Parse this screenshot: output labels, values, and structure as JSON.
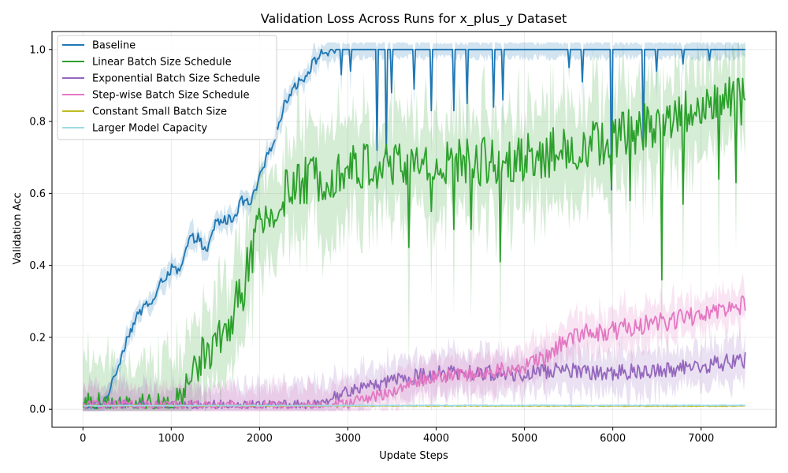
{
  "chart_data": {
    "type": "line",
    "title": "Validation Loss Across Runs for x_plus_y Dataset",
    "xlabel": "Update Steps",
    "ylabel": "Validation Acc",
    "xlim": [
      -350,
      7850
    ],
    "ylim": [
      -0.05,
      1.05
    ],
    "xticks": [
      0,
      1000,
      2000,
      3000,
      4000,
      5000,
      6000,
      7000
    ],
    "yticks": [
      0.0,
      0.2,
      0.4,
      0.6,
      0.8,
      1.0
    ],
    "grid": true,
    "legend_position": "upper-left",
    "x_range": [
      0,
      7500
    ],
    "series": [
      {
        "name": "Baseline",
        "color": "#1f77b4",
        "band": true,
        "noise": 0.01,
        "points": [
          [
            0,
            0.01
          ],
          [
            150,
            0.004
          ],
          [
            250,
            0.02
          ],
          [
            400,
            0.12
          ],
          [
            500,
            0.2
          ],
          [
            600,
            0.25
          ],
          [
            700,
            0.29
          ],
          [
            800,
            0.3
          ],
          [
            900,
            0.36
          ],
          [
            1000,
            0.39
          ],
          [
            1100,
            0.38
          ],
          [
            1200,
            0.47
          ],
          [
            1300,
            0.48
          ],
          [
            1400,
            0.43
          ],
          [
            1500,
            0.52
          ],
          [
            1700,
            0.53
          ],
          [
            1800,
            0.58
          ],
          [
            1900,
            0.57
          ],
          [
            2000,
            0.64
          ],
          [
            2100,
            0.71
          ],
          [
            2200,
            0.78
          ],
          [
            2300,
            0.86
          ],
          [
            2400,
            0.9
          ],
          [
            2500,
            0.92
          ],
          [
            2600,
            0.96
          ],
          [
            2700,
            0.99
          ],
          [
            2900,
            1.0
          ],
          [
            7500,
            1.0
          ]
        ],
        "dips": [
          [
            2930,
            0.93
          ],
          [
            3030,
            0.94
          ],
          [
            3330,
            0.72
          ],
          [
            3430,
            0.71
          ],
          [
            3500,
            0.88
          ],
          [
            3750,
            0.89
          ],
          [
            3950,
            0.83
          ],
          [
            4200,
            0.83
          ],
          [
            4350,
            0.85
          ],
          [
            4650,
            0.84
          ],
          [
            4750,
            0.86
          ],
          [
            5500,
            0.95
          ],
          [
            5650,
            0.91
          ],
          [
            5990,
            0.61
          ],
          [
            6350,
            0.74
          ],
          [
            6500,
            0.94
          ],
          [
            6800,
            0.96
          ],
          [
            7100,
            0.97
          ]
        ]
      },
      {
        "name": "Linear Batch Size Schedule",
        "color": "#2ca02c",
        "band": true,
        "noise": 0.05,
        "points": [
          [
            0,
            0.01
          ],
          [
            1000,
            0.01
          ],
          [
            1100,
            0.03
          ],
          [
            1200,
            0.08
          ],
          [
            1300,
            0.13
          ],
          [
            1400,
            0.16
          ],
          [
            1500,
            0.18
          ],
          [
            1600,
            0.2
          ],
          [
            1700,
            0.27
          ],
          [
            1800,
            0.33
          ],
          [
            1900,
            0.42
          ],
          [
            2000,
            0.5
          ],
          [
            2100,
            0.53
          ],
          [
            2200,
            0.56
          ],
          [
            2300,
            0.6
          ],
          [
            2500,
            0.63
          ],
          [
            2700,
            0.65
          ],
          [
            3000,
            0.67
          ],
          [
            3500,
            0.68
          ],
          [
            4000,
            0.68
          ],
          [
            4500,
            0.69
          ],
          [
            5000,
            0.7
          ],
          [
            5500,
            0.72
          ],
          [
            6000,
            0.75
          ],
          [
            6500,
            0.8
          ],
          [
            7000,
            0.84
          ],
          [
            7500,
            0.86
          ]
        ],
        "dips": [
          [
            3690,
            0.45
          ],
          [
            3950,
            0.55
          ],
          [
            4200,
            0.5
          ],
          [
            4400,
            0.5
          ],
          [
            4720,
            0.41
          ],
          [
            5990,
            0.62
          ],
          [
            6200,
            0.58
          ],
          [
            6550,
            0.36
          ],
          [
            6790,
            0.57
          ],
          [
            7200,
            0.64
          ],
          [
            7400,
            0.63
          ]
        ]
      },
      {
        "name": "Exponential Batch Size Schedule",
        "color": "#9467bd",
        "band": true,
        "noise": 0.022,
        "points": [
          [
            0,
            0.01
          ],
          [
            2500,
            0.01
          ],
          [
            2650,
            0.012
          ],
          [
            3000,
            0.05
          ],
          [
            3500,
            0.08
          ],
          [
            4000,
            0.1
          ],
          [
            4500,
            0.1
          ],
          [
            5000,
            0.1
          ],
          [
            5500,
            0.11
          ],
          [
            6000,
            0.1
          ],
          [
            6500,
            0.11
          ],
          [
            7000,
            0.12
          ],
          [
            7500,
            0.14
          ]
        ],
        "dips": []
      },
      {
        "name": "Step-wise Batch Size Schedule",
        "color": "#e377c2",
        "band": true,
        "noise": 0.02,
        "points": [
          [
            0,
            0.01
          ],
          [
            2800,
            0.01
          ],
          [
            3000,
            0.015
          ],
          [
            3200,
            0.03
          ],
          [
            3500,
            0.05
          ],
          [
            3800,
            0.08
          ],
          [
            4000,
            0.09
          ],
          [
            4500,
            0.1
          ],
          [
            5000,
            0.12
          ],
          [
            5200,
            0.14
          ],
          [
            5400,
            0.18
          ],
          [
            5600,
            0.21
          ],
          [
            6000,
            0.22
          ],
          [
            6500,
            0.24
          ],
          [
            7000,
            0.26
          ],
          [
            7500,
            0.29
          ]
        ],
        "dips": []
      },
      {
        "name": "Constant Small Batch Size",
        "color": "#bcbd22",
        "band": false,
        "noise": 0.0015,
        "points": [
          [
            0,
            0.01
          ],
          [
            7500,
            0.009
          ]
        ],
        "dips": []
      },
      {
        "name": "Larger Model Capacity",
        "color": "#9edae5",
        "band": false,
        "noise": 0.0015,
        "points": [
          [
            0,
            0.01
          ],
          [
            7500,
            0.011
          ]
        ],
        "dips": []
      }
    ]
  }
}
